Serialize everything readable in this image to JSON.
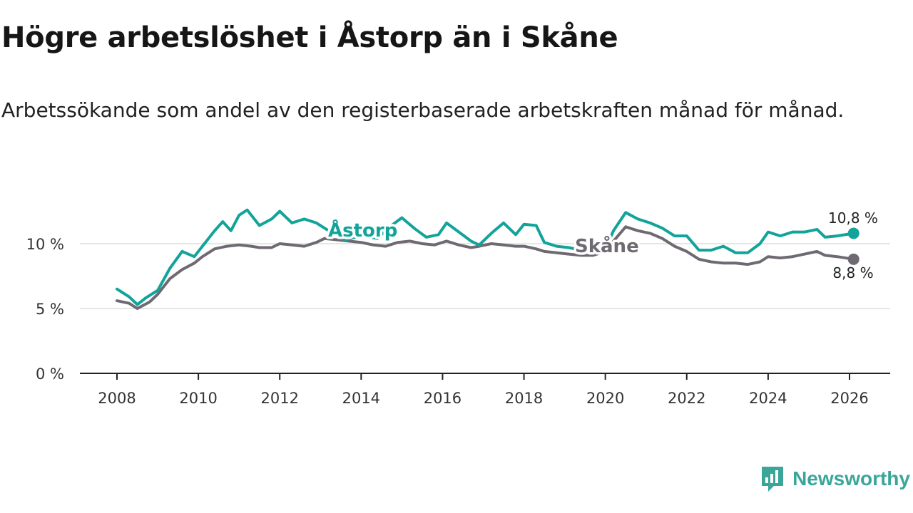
{
  "title": "Högre arbetslöshet i Åstorp än i Skåne",
  "subtitle": "Arbetssökande som andel av den registerbaserade arbetskraften månad för månad.",
  "brand": {
    "name": "Newsworthy",
    "icon": "newsworthy-logo-icon"
  },
  "colors": {
    "astorp": "#12a39a",
    "skane": "#6f6a72",
    "grid": "#dddddd",
    "axis": "#222222"
  },
  "chart_data": {
    "type": "line",
    "xlim": [
      2008,
      2026
    ],
    "ylim": [
      0,
      10
    ],
    "x_ticks": [
      2008,
      2010,
      2012,
      2014,
      2016,
      2018,
      2020,
      2022,
      2024,
      2026
    ],
    "x_tick_labels": [
      "2008",
      "2010",
      "2012",
      "2014",
      "2016",
      "2018",
      "2020",
      "2022",
      "2024",
      "2026"
    ],
    "y_ticks": [
      0,
      5,
      10
    ],
    "y_tick_labels": [
      "0 %",
      "5 %",
      "10 %"
    ],
    "series": [
      {
        "name": "Åstorp",
        "label": "Åstorp",
        "end_label": "10,8 %",
        "points": [
          [
            2008.0,
            6.5
          ],
          [
            2008.3,
            5.9
          ],
          [
            2008.5,
            5.3
          ],
          [
            2008.7,
            5.8
          ],
          [
            2009.0,
            6.4
          ],
          [
            2009.3,
            8.1
          ],
          [
            2009.6,
            9.4
          ],
          [
            2009.9,
            9.0
          ],
          [
            2010.1,
            9.8
          ],
          [
            2010.4,
            11.0
          ],
          [
            2010.6,
            11.7
          ],
          [
            2010.8,
            11.0
          ],
          [
            2011.0,
            12.2
          ],
          [
            2011.2,
            12.6
          ],
          [
            2011.5,
            11.4
          ],
          [
            2011.8,
            11.9
          ],
          [
            2012.0,
            12.5
          ],
          [
            2012.3,
            11.6
          ],
          [
            2012.6,
            11.9
          ],
          [
            2012.9,
            11.6
          ],
          [
            2013.1,
            11.2
          ],
          [
            2013.3,
            10.8
          ],
          [
            2013.6,
            10.3
          ],
          [
            2014.0,
            10.6
          ],
          [
            2014.4,
            10.4
          ],
          [
            2014.7,
            11.3
          ],
          [
            2015.0,
            12.0
          ],
          [
            2015.3,
            11.2
          ],
          [
            2015.6,
            10.5
          ],
          [
            2015.9,
            10.7
          ],
          [
            2016.1,
            11.6
          ],
          [
            2016.4,
            10.9
          ],
          [
            2016.7,
            10.2
          ],
          [
            2016.9,
            9.9
          ],
          [
            2017.2,
            10.8
          ],
          [
            2017.5,
            11.6
          ],
          [
            2017.8,
            10.7
          ],
          [
            2018.0,
            11.5
          ],
          [
            2018.3,
            11.4
          ],
          [
            2018.5,
            10.1
          ],
          [
            2018.8,
            9.8
          ],
          [
            2019.1,
            9.7
          ],
          [
            2019.4,
            9.5
          ],
          [
            2019.7,
            9.3
          ],
          [
            2020.0,
            9.6
          ],
          [
            2020.2,
            11.0
          ],
          [
            2020.5,
            12.4
          ],
          [
            2020.8,
            11.9
          ],
          [
            2021.1,
            11.6
          ],
          [
            2021.4,
            11.2
          ],
          [
            2021.7,
            10.6
          ],
          [
            2022.0,
            10.6
          ],
          [
            2022.3,
            9.5
          ],
          [
            2022.6,
            9.5
          ],
          [
            2022.9,
            9.8
          ],
          [
            2023.2,
            9.3
          ],
          [
            2023.5,
            9.3
          ],
          [
            2023.8,
            10.0
          ],
          [
            2024.0,
            10.9
          ],
          [
            2024.3,
            10.6
          ],
          [
            2024.6,
            10.9
          ],
          [
            2024.9,
            10.9
          ],
          [
            2025.2,
            11.1
          ],
          [
            2025.4,
            10.5
          ],
          [
            2025.7,
            10.6
          ],
          [
            2026.1,
            10.8
          ]
        ]
      },
      {
        "name": "Skåne",
        "label": "Skåne",
        "end_label": "8,8 %",
        "points": [
          [
            2008.0,
            5.6
          ],
          [
            2008.3,
            5.4
          ],
          [
            2008.5,
            5.0
          ],
          [
            2008.8,
            5.5
          ],
          [
            2009.0,
            6.1
          ],
          [
            2009.3,
            7.3
          ],
          [
            2009.6,
            8.0
          ],
          [
            2009.9,
            8.5
          ],
          [
            2010.1,
            9.0
          ],
          [
            2010.4,
            9.6
          ],
          [
            2010.7,
            9.8
          ],
          [
            2011.0,
            9.9
          ],
          [
            2011.3,
            9.8
          ],
          [
            2011.5,
            9.7
          ],
          [
            2011.8,
            9.7
          ],
          [
            2012.0,
            10.0
          ],
          [
            2012.3,
            9.9
          ],
          [
            2012.6,
            9.8
          ],
          [
            2012.9,
            10.1
          ],
          [
            2013.1,
            10.4
          ],
          [
            2013.4,
            10.3
          ],
          [
            2013.7,
            10.2
          ],
          [
            2014.0,
            10.1
          ],
          [
            2014.3,
            9.9
          ],
          [
            2014.6,
            9.8
          ],
          [
            2014.9,
            10.1
          ],
          [
            2015.2,
            10.2
          ],
          [
            2015.5,
            10.0
          ],
          [
            2015.8,
            9.9
          ],
          [
            2016.1,
            10.2
          ],
          [
            2016.4,
            9.9
          ],
          [
            2016.7,
            9.7
          ],
          [
            2016.9,
            9.8
          ],
          [
            2017.2,
            10.0
          ],
          [
            2017.5,
            9.9
          ],
          [
            2017.8,
            9.8
          ],
          [
            2018.0,
            9.8
          ],
          [
            2018.3,
            9.6
          ],
          [
            2018.5,
            9.4
          ],
          [
            2018.8,
            9.3
          ],
          [
            2019.1,
            9.2
          ],
          [
            2019.4,
            9.1
          ],
          [
            2019.7,
            9.1
          ],
          [
            2020.0,
            9.4
          ],
          [
            2020.2,
            10.2
          ],
          [
            2020.5,
            11.3
          ],
          [
            2020.8,
            11.0
          ],
          [
            2021.1,
            10.8
          ],
          [
            2021.4,
            10.4
          ],
          [
            2021.7,
            9.8
          ],
          [
            2022.0,
            9.4
          ],
          [
            2022.3,
            8.8
          ],
          [
            2022.6,
            8.6
          ],
          [
            2022.9,
            8.5
          ],
          [
            2023.2,
            8.5
          ],
          [
            2023.5,
            8.4
          ],
          [
            2023.8,
            8.6
          ],
          [
            2024.0,
            9.0
          ],
          [
            2024.3,
            8.9
          ],
          [
            2024.6,
            9.0
          ],
          [
            2024.9,
            9.2
          ],
          [
            2025.2,
            9.4
          ],
          [
            2025.4,
            9.1
          ],
          [
            2025.7,
            9.0
          ],
          [
            2026.1,
            8.8
          ]
        ]
      }
    ]
  }
}
